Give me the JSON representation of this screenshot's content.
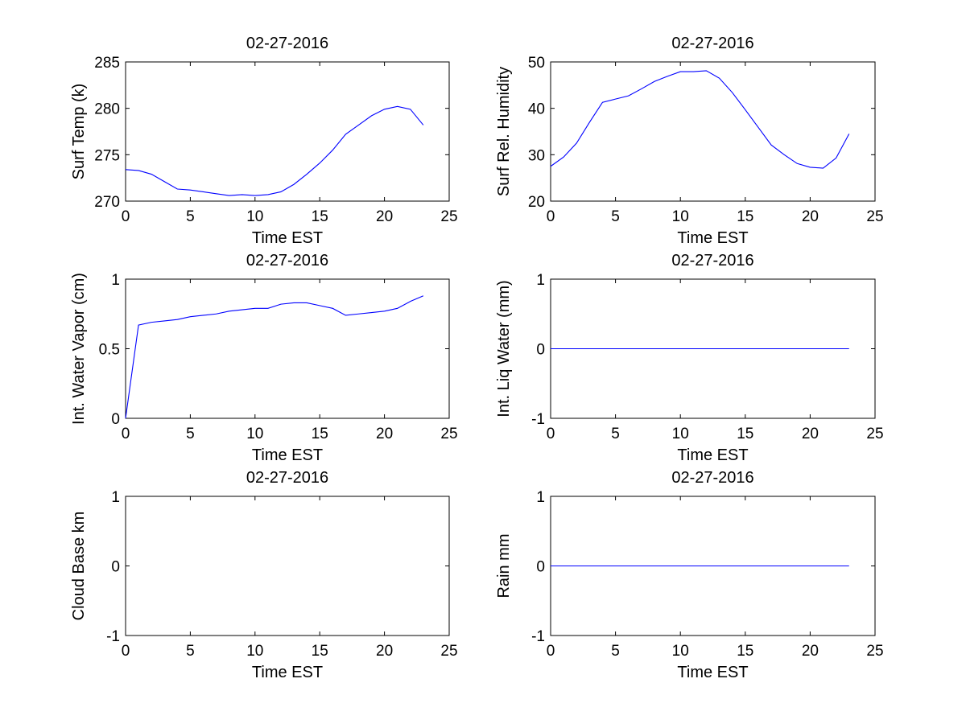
{
  "figure": {
    "background": "#ffffff"
  },
  "chart_data": [
    {
      "type": "line",
      "title": "02-27-2016",
      "xlabel": "Time EST",
      "ylabel": "Surf Temp (k)",
      "xlim": [
        0,
        25
      ],
      "ylim": [
        270,
        285
      ],
      "xticks": [
        0,
        5,
        10,
        15,
        20,
        25
      ],
      "yticks": [
        270,
        275,
        280,
        285
      ],
      "grid": false,
      "series": [
        {
          "color": "#0000ff",
          "x": [
            0,
            1,
            2,
            3,
            4,
            5,
            6,
            7,
            8,
            9,
            10,
            11,
            12,
            13,
            14,
            15,
            16,
            17,
            18,
            19,
            20,
            21,
            22,
            23
          ],
          "y": [
            273.4,
            273.3,
            272.9,
            272.1,
            271.3,
            271.2,
            271.0,
            270.8,
            270.6,
            270.7,
            270.6,
            270.7,
            271.0,
            271.8,
            272.9,
            274.1,
            275.5,
            277.2,
            278.2,
            279.2,
            279.9,
            280.2,
            279.9,
            278.2
          ]
        }
      ]
    },
    {
      "type": "line",
      "title": "02-27-2016",
      "xlabel": "Time EST",
      "ylabel": "Surf Rel. Humidity",
      "xlim": [
        0,
        25
      ],
      "ylim": [
        20,
        50
      ],
      "xticks": [
        0,
        5,
        10,
        15,
        20,
        25
      ],
      "yticks": [
        20,
        30,
        40,
        50
      ],
      "grid": false,
      "series": [
        {
          "color": "#0000ff",
          "x": [
            0,
            1,
            2,
            3,
            4,
            5,
            6,
            7,
            8,
            9,
            10,
            11,
            12,
            13,
            14,
            15,
            16,
            17,
            18,
            19,
            20,
            21,
            22,
            23
          ],
          "y": [
            27.5,
            29.5,
            32.5,
            37.0,
            41.3,
            42.0,
            42.7,
            44.2,
            45.8,
            46.9,
            47.9,
            47.9,
            48.1,
            46.5,
            43.4,
            39.7,
            35.9,
            32.1,
            30.0,
            28.1,
            27.3,
            27.1,
            29.3,
            34.5
          ]
        }
      ]
    },
    {
      "type": "line",
      "title": "02-27-2016",
      "xlabel": "Time EST",
      "ylabel": "Int. Water Vapor (cm)",
      "xlim": [
        0,
        25
      ],
      "ylim": [
        0,
        1
      ],
      "xticks": [
        0,
        5,
        10,
        15,
        20,
        25
      ],
      "yticks": [
        0,
        0.5,
        1
      ],
      "grid": false,
      "series": [
        {
          "color": "#0000ff",
          "x": [
            0,
            1,
            2,
            3,
            4,
            5,
            6,
            7,
            8,
            9,
            10,
            11,
            12,
            13,
            14,
            15,
            16,
            17,
            18,
            19,
            20,
            21,
            22,
            23
          ],
          "y": [
            0.0,
            0.67,
            0.69,
            0.7,
            0.71,
            0.73,
            0.74,
            0.75,
            0.77,
            0.78,
            0.79,
            0.79,
            0.82,
            0.83,
            0.83,
            0.81,
            0.79,
            0.74,
            0.75,
            0.76,
            0.77,
            0.79,
            0.84,
            0.88
          ]
        }
      ]
    },
    {
      "type": "line",
      "title": "02-27-2016",
      "xlabel": "Time EST",
      "ylabel": "Int. Liq Water (mm)",
      "xlim": [
        0,
        25
      ],
      "ylim": [
        -1,
        1
      ],
      "xticks": [
        0,
        5,
        10,
        15,
        20,
        25
      ],
      "yticks": [
        -1,
        0,
        1
      ],
      "grid": false,
      "series": [
        {
          "color": "#0000ff",
          "x": [
            0,
            1,
            2,
            3,
            4,
            5,
            6,
            7,
            8,
            9,
            10,
            11,
            12,
            13,
            14,
            15,
            16,
            17,
            18,
            19,
            20,
            21,
            22,
            23
          ],
          "y": [
            0,
            0,
            0,
            0,
            0,
            0,
            0,
            0,
            0,
            0,
            0,
            0,
            0,
            0,
            0,
            0,
            0,
            0,
            0,
            0,
            0,
            0,
            0,
            0
          ]
        }
      ]
    },
    {
      "type": "line",
      "title": "02-27-2016",
      "xlabel": "Time EST",
      "ylabel": "Cloud Base km",
      "xlim": [
        0,
        25
      ],
      "ylim": [
        -1,
        1
      ],
      "xticks": [
        0,
        5,
        10,
        15,
        20,
        25
      ],
      "yticks": [
        -1,
        0,
        1
      ],
      "grid": false,
      "series": []
    },
    {
      "type": "line",
      "title": "02-27-2016",
      "xlabel": "Time EST",
      "ylabel": "Rain mm",
      "xlim": [
        0,
        25
      ],
      "ylim": [
        -1,
        1
      ],
      "xticks": [
        0,
        5,
        10,
        15,
        20,
        25
      ],
      "yticks": [
        -1,
        0,
        1
      ],
      "grid": false,
      "series": [
        {
          "color": "#0000ff",
          "x": [
            0,
            1,
            2,
            3,
            4,
            5,
            6,
            7,
            8,
            9,
            10,
            11,
            12,
            13,
            14,
            15,
            16,
            17,
            18,
            19,
            20,
            21,
            22,
            23
          ],
          "y": [
            0,
            0,
            0,
            0,
            0,
            0,
            0,
            0,
            0,
            0,
            0,
            0,
            0,
            0,
            0,
            0,
            0,
            0,
            0,
            0,
            0,
            0,
            0,
            0
          ]
        }
      ]
    }
  ]
}
